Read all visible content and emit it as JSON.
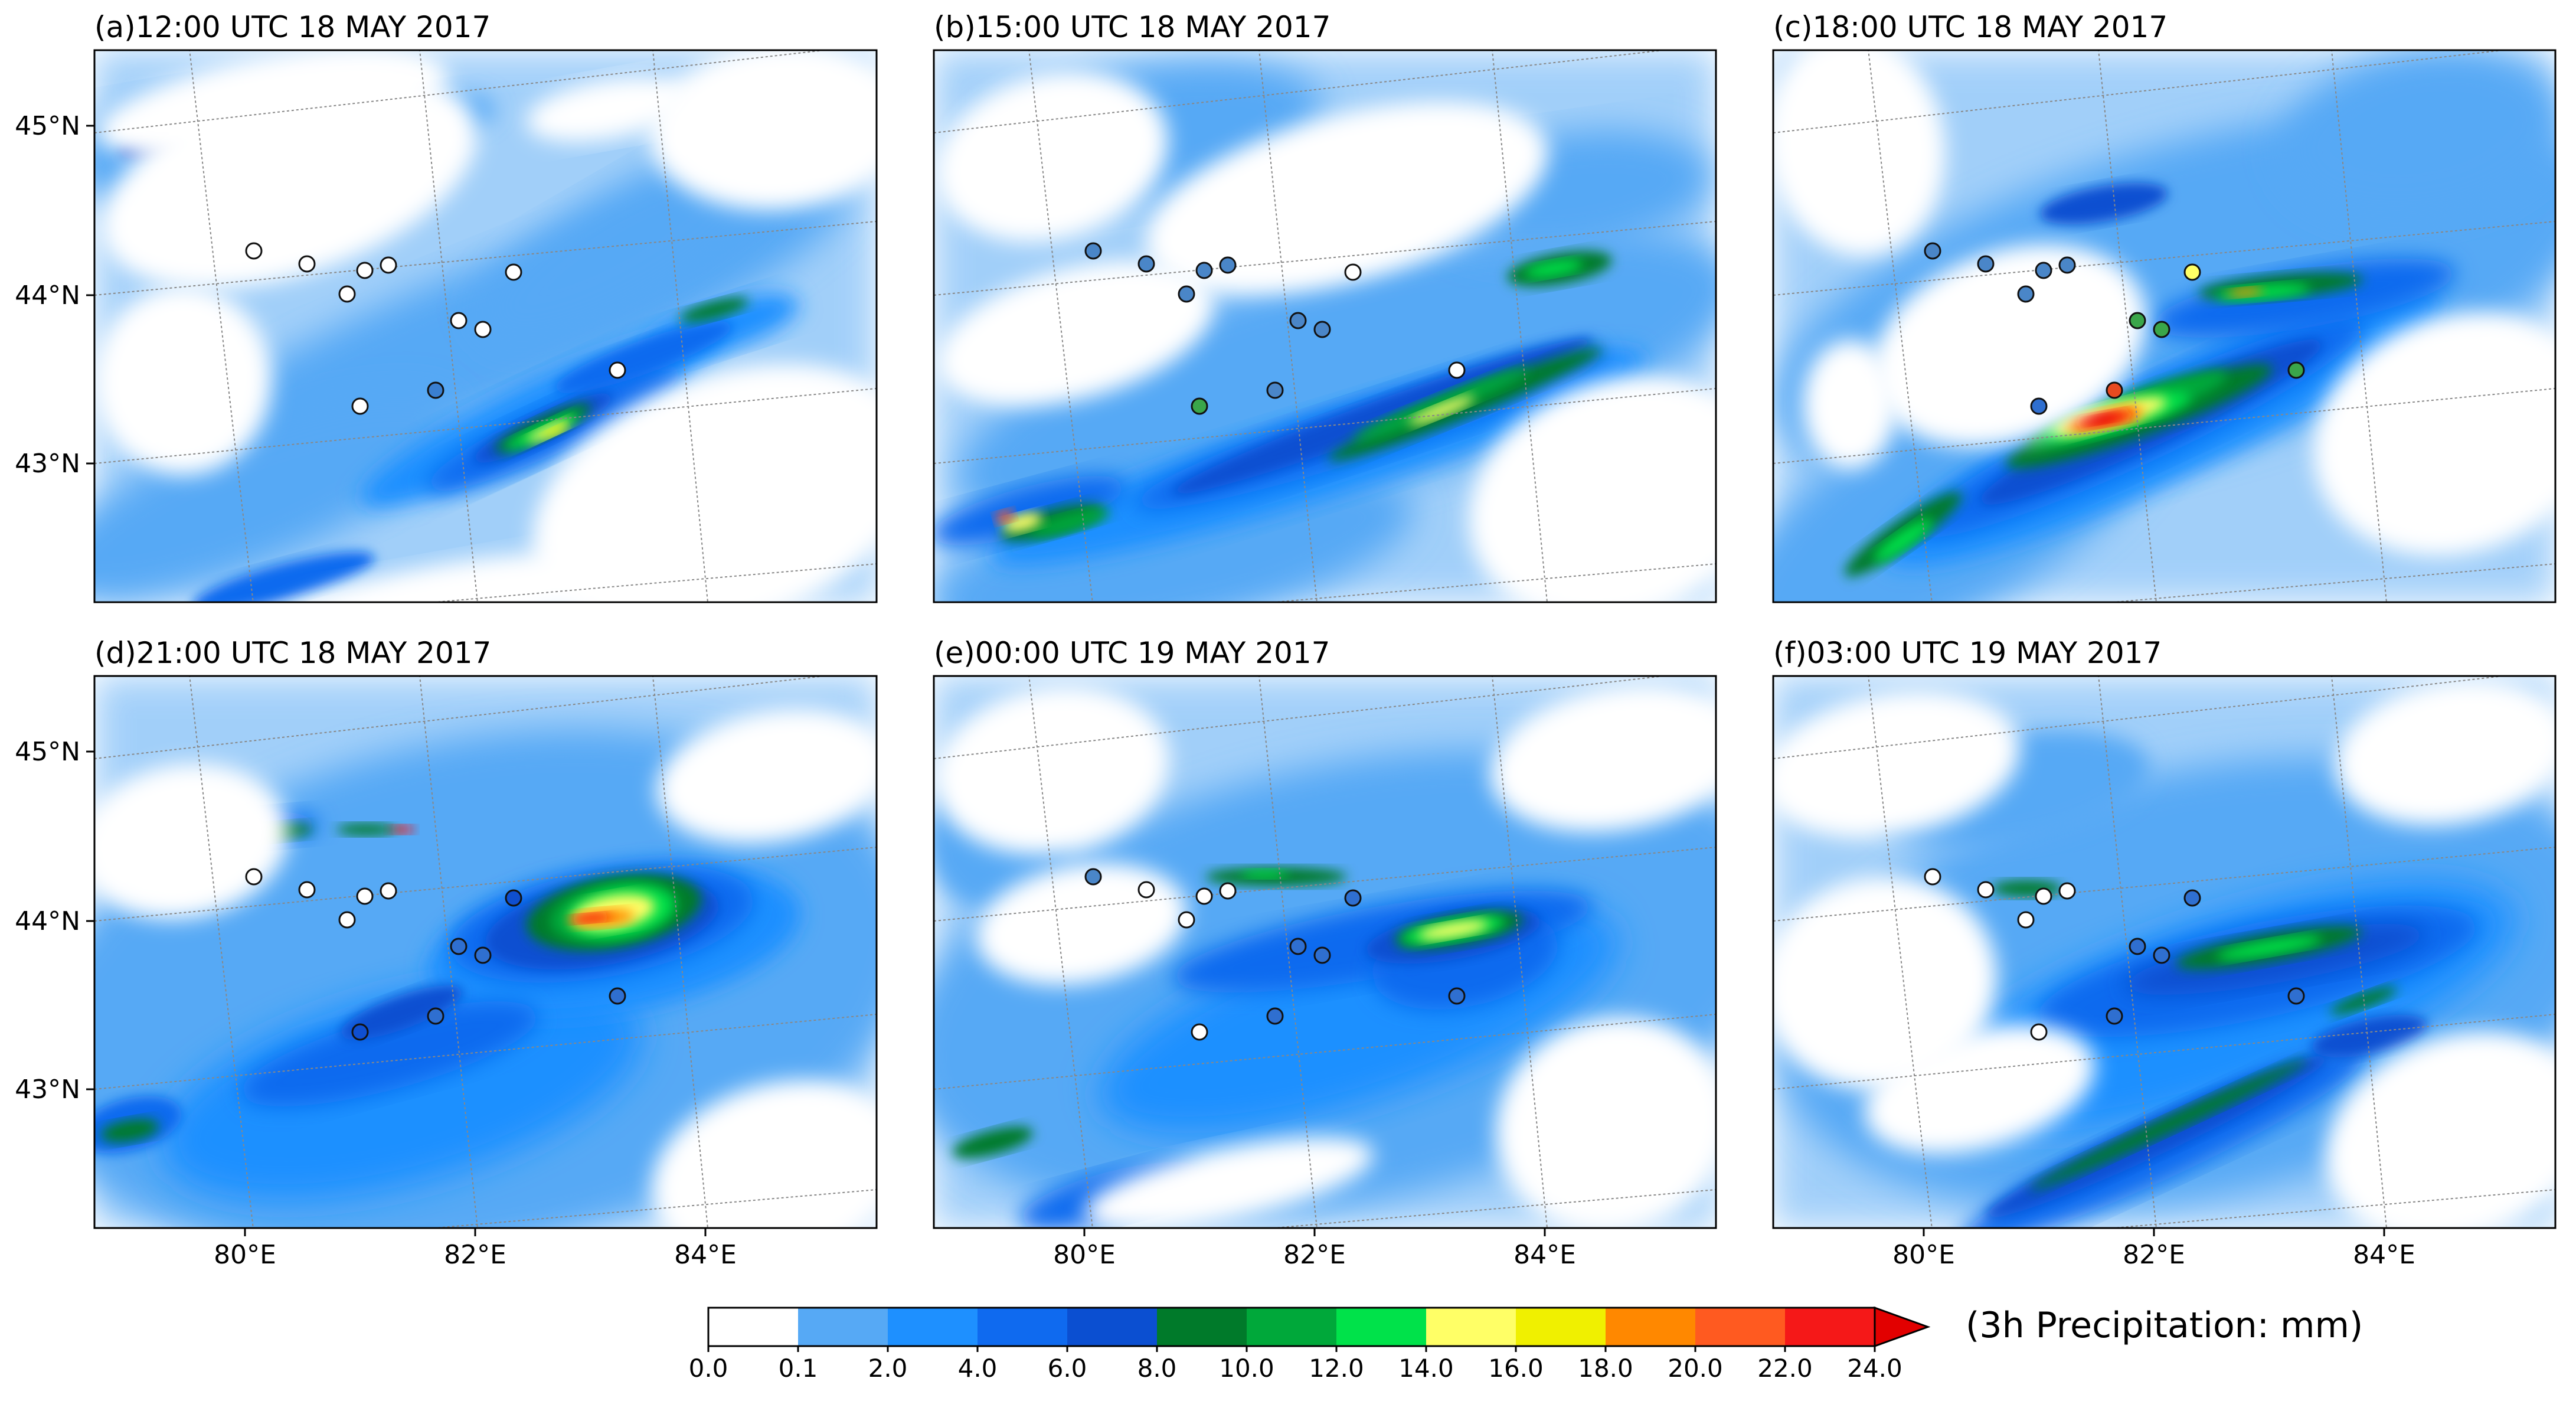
{
  "figure": {
    "panels": [
      {
        "title": "(a)12:00 UTC 18 MAY 2017",
        "lat_labels": [
          "45°N",
          "44°N",
          "43°N"
        ],
        "lon_labels": []
      },
      {
        "title": "(b)15:00 UTC 18 MAY 2017",
        "lat_labels": [],
        "lon_labels": []
      },
      {
        "title": "(c)18:00 UTC 18 MAY 2017",
        "lat_labels": [],
        "lon_labels": []
      },
      {
        "title": "(d)21:00 UTC 18 MAY 2017",
        "lat_labels": [
          "45°N",
          "44°N",
          "43°N"
        ],
        "lon_labels": [
          "80°E",
          "82°E",
          "84°E"
        ]
      },
      {
        "title": "(e)00:00 UTC 19 MAY 2017",
        "lat_labels": [],
        "lon_labels": [
          "80°E",
          "82°E",
          "84°E"
        ]
      },
      {
        "title": "(f)03:00 UTC 19 MAY 2017",
        "lat_labels": [],
        "lon_labels": [
          "80°E",
          "82°E",
          "84°E"
        ]
      }
    ],
    "station_fills": [
      [
        "white",
        "white",
        "white",
        "white",
        "white",
        "white",
        "white",
        "white",
        "#3a7fd0",
        "white",
        "white"
      ],
      [
        "#4a86c8",
        "#4a86c8",
        "#4a86c8",
        "#4a86c8",
        "#4a86c8",
        "white",
        "#4a86c8",
        "#3aa64a",
        "#4a86c8",
        "white",
        "#4a86c8"
      ],
      [
        "#4a86c8",
        "#4a86c8",
        "#4a86c8",
        "#4a86c8",
        "#4a86c8",
        "#ffff66",
        "#3aa64a",
        "#2f6fd0",
        "#e84a20",
        "#3aa64a",
        "#3aa64a"
      ],
      [
        "white",
        "white",
        "white",
        "white",
        "white",
        "#0f4fd0",
        "#2f6fd0",
        "#0f4fd0",
        "#2f6fd0",
        "#2f6fd0",
        "#2f6fd0"
      ],
      [
        "#4a86c8",
        "white",
        "white",
        "white",
        "white",
        "#2f6fd0",
        "#2f6fd0",
        "white",
        "#2f6fd0",
        "#2f6fd0",
        "#2f6fd0"
      ],
      [
        "white",
        "white",
        "white",
        "white",
        "white",
        "#2f6fd0",
        "#2f6fd0",
        "white",
        "#2f6fd0",
        "#2f6fd0",
        "#2f6fd0"
      ]
    ],
    "colorbar": {
      "title": "(3h Precipitation: mm)",
      "colors": [
        "#ffffff",
        "#56a9f5",
        "#1e90ff",
        "#0f6aef",
        "#0b4fd1",
        "#007a2a",
        "#00a83a",
        "#00e24a",
        "#ffff66",
        "#f0f000",
        "#ff8800",
        "#ff5a20",
        "#f51818",
        "#e20000"
      ],
      "ticks": [
        "0.0",
        "0.1",
        "2.0",
        "4.0",
        "6.0",
        "8.0",
        "10.0",
        "12.0",
        "14.0",
        "16.0",
        "18.0",
        "20.0",
        "22.0",
        "24.0"
      ]
    }
  }
}
